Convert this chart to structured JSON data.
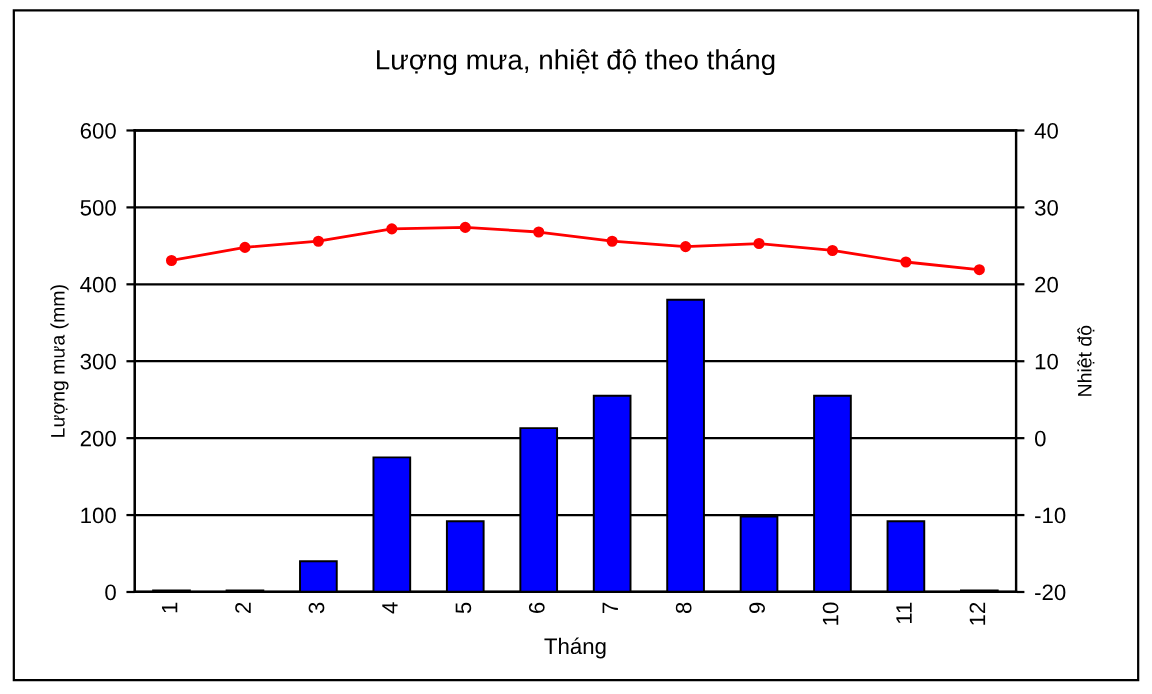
{
  "chart_data": {
    "type": "bar",
    "title": "Lượng mưa, nhiệt độ theo tháng",
    "xlabel": "Tháng",
    "ylabel": "Lượng mưa (mm)",
    "y2label": "Nhiệt độ",
    "categories": [
      "1",
      "2",
      "3",
      "4",
      "5",
      "6",
      "7",
      "8",
      "9",
      "10",
      "11",
      "12"
    ],
    "series": [
      {
        "color": "#0000ff",
        "values": [
          2,
          2,
          40,
          175,
          92,
          213,
          255,
          380,
          98,
          255,
          92,
          2
        ]
      },
      {
        "type": "line",
        "axis": "y2",
        "color": "#ff0000",
        "marker": "circle",
        "values": [
          23.1,
          24.8,
          25.6,
          27.2,
          27.4,
          26.8,
          25.6,
          24.9,
          25.3,
          24.4,
          22.9,
          21.9
        ]
      }
    ],
    "ylim": [
      0,
      600
    ],
    "yticks": [
      0,
      100,
      200,
      300,
      400,
      500,
      600
    ],
    "y2lim": [
      -20,
      40
    ],
    "y2ticks": [
      -20,
      -10,
      0,
      10,
      20,
      30,
      40
    ],
    "grid": "y",
    "legend": false
  }
}
